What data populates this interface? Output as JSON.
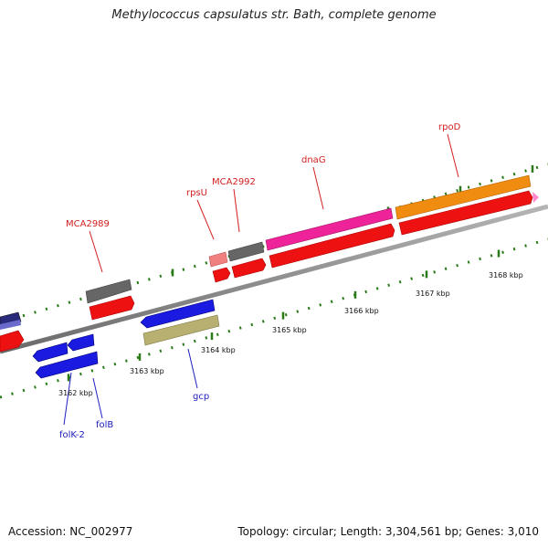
{
  "title": "Methylococcus capsulatus str. Bath, complete genome",
  "footer": {
    "accession": "Accession: NC_002977",
    "summary": "Topology: circular; Length: 3,304,561 bp; Genes: 3,010"
  },
  "ruler_labels": [
    "3162 kbp",
    "3163 kbp",
    "3164 kbp",
    "3165 kbp",
    "3166 kbp",
    "3167 kbp",
    "3168 kbp"
  ],
  "gene_labels": {
    "forward": [
      "MCA2989",
      "rpsU",
      "MCA2992",
      "dnaG",
      "rpoD"
    ],
    "reverse": [
      "folK-2",
      "folB",
      "gcp"
    ]
  },
  "colors": {
    "forward_label": "#d42020",
    "reverse_label": "#2020c0",
    "tick": "#2a7a1a",
    "backbone": "#888888",
    "cds_red": "#ee1111",
    "gene_gray": "#666666",
    "gene_blue": "#1a1ae0",
    "gene_magenta": "#ee2299",
    "gene_orange": "#f08c10",
    "gene_pink": "#f08080",
    "gene_olive": "#b8b070"
  }
}
